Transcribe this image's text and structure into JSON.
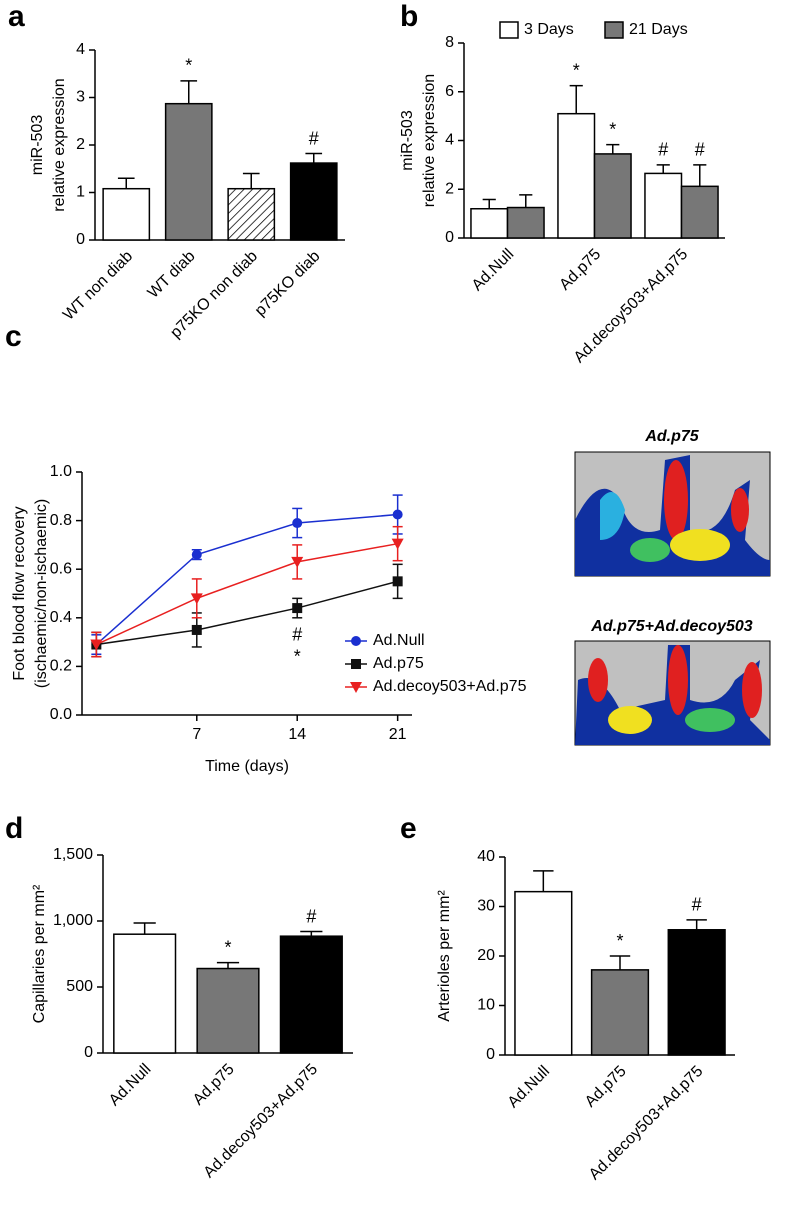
{
  "chart_data": [
    {
      "type": "bar",
      "panel": "a",
      "ylabel": [
        "miR-503",
        "relative expression"
      ],
      "categories": [
        "WT non diab",
        "WT diab",
        "p75KO non diab",
        "p75KO diab"
      ],
      "values": [
        1.08,
        2.87,
        1.08,
        1.62
      ],
      "errors": [
        0.22,
        0.48,
        0.32,
        0.2
      ],
      "colors": [
        "#ffffff",
        "#777777",
        "hatch",
        "#000000"
      ],
      "annotations": [
        null,
        "*",
        null,
        "#"
      ],
      "ylim": [
        0,
        4
      ],
      "yticks": [
        0,
        1,
        2,
        3,
        4
      ]
    },
    {
      "type": "bar",
      "panel": "b",
      "ylabel": [
        "miR-503",
        "relative expression"
      ],
      "categories": [
        "Ad.Null",
        "Ad.p75",
        "Ad.decoy503+Ad.p75"
      ],
      "series": [
        {
          "name": "3 Days",
          "color": "#ffffff",
          "values": [
            1.2,
            5.1,
            2.65
          ],
          "errors": [
            0.38,
            1.15,
            0.35
          ],
          "annotations": [
            null,
            "*",
            "#"
          ]
        },
        {
          "name": "21 Days",
          "color": "#777777",
          "values": [
            1.25,
            3.45,
            2.12
          ],
          "errors": [
            0.52,
            0.38,
            0.88
          ],
          "annotations": [
            null,
            "*",
            "#"
          ]
        }
      ],
      "ylim": [
        0,
        8
      ],
      "yticks": [
        0,
        2,
        4,
        6,
        8
      ]
    },
    {
      "type": "line",
      "panel": "c",
      "ylabel": [
        "Foot blood flow recovery",
        "(ischaemic/non-ischaemic)"
      ],
      "xlabel": "Time (days)",
      "x": [
        0,
        7,
        14,
        21
      ],
      "series": [
        {
          "name": "Ad.Null",
          "color": "#1a2fd0",
          "marker": "circle",
          "values": [
            0.29,
            0.66,
            0.79,
            0.825
          ],
          "errors": [
            0.04,
            0.02,
            0.06,
            0.08
          ]
        },
        {
          "name": "Ad.p75",
          "color": "#111111",
          "marker": "square",
          "values": [
            0.29,
            0.35,
            0.44,
            0.55
          ],
          "errors": [
            0.05,
            0.07,
            0.04,
            0.07
          ],
          "annotations": [
            null,
            null,
            [
              "#",
              "*"
            ],
            null
          ]
        },
        {
          "name": "Ad.decoy503+Ad.p75",
          "color": "#e82020",
          "marker": "triangle",
          "values": [
            0.29,
            0.48,
            0.63,
            0.705
          ],
          "errors": [
            0.05,
            0.08,
            0.07,
            0.07
          ]
        }
      ],
      "xlim": [
        -1,
        22
      ],
      "xticks": [
        7,
        14,
        21
      ],
      "ylim": [
        0,
        1
      ],
      "yticks": [
        {
          "value": 0,
          "label": "0.0"
        },
        0.2,
        0.4,
        0.6,
        0.8,
        {
          "value": 1,
          "label": "1.0"
        }
      ],
      "images": [
        "Ad.p75",
        "Ad.p75+Ad.decoy503"
      ]
    },
    {
      "type": "bar",
      "panel": "d",
      "ylabel": [
        "Capillaries per mm²"
      ],
      "categories": [
        "Ad.Null",
        "Ad.p75",
        "Ad.decoy503+Ad.p75"
      ],
      "values": [
        900,
        640,
        885
      ],
      "errors": [
        85,
        45,
        35
      ],
      "colors": [
        "#ffffff",
        "#777777",
        "#000000"
      ],
      "annotations": [
        null,
        "*",
        "#"
      ],
      "ylim": [
        0,
        1500
      ],
      "yticks": [
        0,
        500,
        {
          "value": 1000,
          "label": "1,000"
        },
        {
          "value": 1500,
          "label": "1,500"
        }
      ]
    },
    {
      "type": "bar",
      "panel": "e",
      "ylabel": [
        "Arterioles per mm²"
      ],
      "categories": [
        "Ad.Null",
        "Ad.p75",
        "Ad.decoy503+Ad.p75"
      ],
      "values": [
        33,
        17.2,
        25.3
      ],
      "errors": [
        4.2,
        2.8,
        2
      ],
      "colors": [
        "#ffffff",
        "#777777",
        "#000000"
      ],
      "annotations": [
        null,
        "*",
        "#"
      ],
      "ylim": [
        0,
        40
      ],
      "yticks": [
        0,
        10,
        20,
        30,
        40
      ]
    }
  ]
}
